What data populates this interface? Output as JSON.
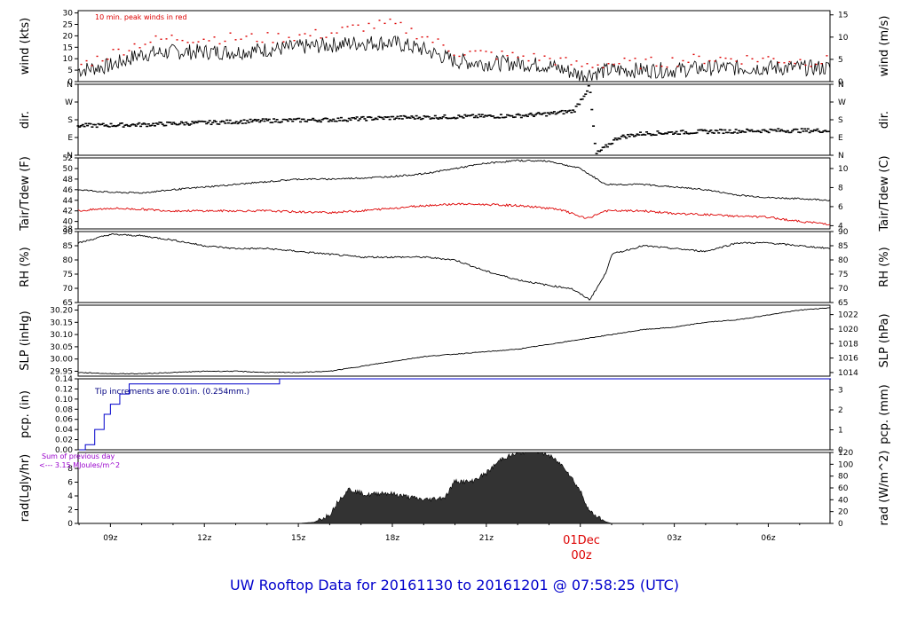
{
  "title": "UW Rooftop Data for 20161130  to  20161201 @ 07:58:25  (UTC)",
  "x_axis": {
    "ticks": [
      "09z",
      "12z",
      "15z",
      "18z",
      "21z",
      "00z",
      "03z",
      "06z"
    ],
    "date_marker": "01Dec",
    "date_marker_hour": "00z",
    "date_marker_color": "#dd0000"
  },
  "panels": [
    {
      "id": "wind",
      "left_label": "wind (kts)",
      "right_label": "wind (m/s)",
      "left_ticks": [
        "0",
        "5",
        "10",
        "15",
        "20",
        "25",
        "30"
      ],
      "right_ticks": [
        "0",
        "5",
        "10",
        "15"
      ],
      "annotation": "10 min. peak winds in red"
    },
    {
      "id": "dir",
      "left_label": "dir.",
      "right_label": "dir.",
      "left_ticks": [
        "N",
        "E",
        "S",
        "W",
        "N"
      ],
      "right_ticks": [
        "N",
        "E",
        "S",
        "W",
        "N"
      ]
    },
    {
      "id": "temp",
      "left_label": "Tair/Tdew (F)",
      "right_label": "Tair/Tdew (C)",
      "left_ticks": [
        "38",
        "40",
        "42",
        "44",
        "46",
        "48",
        "50",
        "52"
      ],
      "right_ticks": [
        "4",
        "6",
        "8",
        "10"
      ]
    },
    {
      "id": "rh",
      "left_label": "RH (%)",
      "right_label": "RH (%)",
      "left_ticks": [
        "65",
        "70",
        "75",
        "80",
        "85",
        "90"
      ],
      "right_ticks": [
        "65",
        "70",
        "75",
        "80",
        "85",
        "90"
      ]
    },
    {
      "id": "slp",
      "left_label": "SLP (inHg)",
      "right_label": "SLP (hPa)",
      "left_ticks": [
        "29.95",
        "30.00",
        "30.05",
        "30.10",
        "30.15",
        "30.20"
      ],
      "right_ticks": [
        "1014",
        "1016",
        "1018",
        "1020",
        "1022"
      ]
    },
    {
      "id": "pcp",
      "left_label": "pcp. (in)",
      "right_label": "pcp. (mm)",
      "left_ticks": [
        "0.00",
        "0.02",
        "0.04",
        "0.06",
        "0.08",
        "0.10",
        "0.12",
        "0.14"
      ],
      "right_ticks": [
        "0",
        "1",
        "2",
        "3"
      ],
      "annotation": "Tip increments are 0.01in. (0.254mm.)"
    },
    {
      "id": "rad",
      "left_label": "rad(Lgly/hr)",
      "right_label": "rad (W/m^2)",
      "left_ticks": [
        "0",
        "2",
        "4",
        "6",
        "8"
      ],
      "right_ticks": [
        "0",
        "20",
        "40",
        "60",
        "80",
        "100",
        "120"
      ],
      "annotation_line1": "Sum of previous day",
      "annotation_line2": "<--- 3.15 MJoules/m^2"
    }
  ],
  "colors": {
    "title": "#0000cc",
    "peak": "#dd0000",
    "dew": "#dd0000",
    "pcp": "#0000cc",
    "rad_note": "#9900cc"
  },
  "chart_data": {
    "type": "line",
    "x_unit": "UTC hour (2016-11-30 07:58 to 2016-12-01 07:58)",
    "x_range": [
      7.97,
      31.97
    ],
    "wind": {
      "ylim_kts": [
        0,
        31
      ],
      "avg_kts": [
        [
          8,
          5
        ],
        [
          9,
          7
        ],
        [
          10,
          12
        ],
        [
          11,
          13
        ],
        [
          12,
          13
        ],
        [
          13,
          13
        ],
        [
          14,
          14
        ],
        [
          15,
          15
        ],
        [
          16,
          16
        ],
        [
          17,
          17
        ],
        [
          18,
          17
        ],
        [
          19,
          14
        ],
        [
          20,
          9
        ],
        [
          21,
          8
        ],
        [
          22,
          8
        ],
        [
          23,
          7
        ],
        [
          24,
          3
        ],
        [
          25,
          5
        ],
        [
          26,
          5
        ],
        [
          27,
          5
        ],
        [
          28,
          6
        ],
        [
          29,
          6
        ],
        [
          30,
          6
        ],
        [
          31,
          6
        ],
        [
          32,
          6
        ]
      ],
      "peak_kts": [
        [
          8,
          7
        ],
        [
          9,
          12
        ],
        [
          10,
          17
        ],
        [
          11,
          19
        ],
        [
          12,
          19
        ],
        [
          13,
          19
        ],
        [
          14,
          19
        ],
        [
          15,
          20
        ],
        [
          16,
          21
        ],
        [
          17,
          24
        ],
        [
          18,
          25
        ],
        [
          19,
          20
        ],
        [
          20,
          13
        ],
        [
          21,
          12
        ],
        [
          22,
          11
        ],
        [
          23,
          10
        ],
        [
          24,
          7
        ],
        [
          25,
          8
        ],
        [
          26,
          8
        ],
        [
          27,
          9
        ],
        [
          28,
          10
        ],
        [
          29,
          10
        ],
        [
          30,
          10
        ],
        [
          31,
          9
        ],
        [
          32,
          9
        ]
      ]
    },
    "dir": {
      "categories": [
        "N",
        "E",
        "S",
        "W",
        "N"
      ],
      "degrees": [
        [
          8,
          150
        ],
        [
          10,
          155
        ],
        [
          12,
          165
        ],
        [
          14,
          175
        ],
        [
          16,
          180
        ],
        [
          18,
          190
        ],
        [
          20,
          195
        ],
        [
          22,
          200
        ],
        [
          23,
          210
        ],
        [
          23.8,
          225
        ],
        [
          24.1,
          300
        ],
        [
          24.3,
          350
        ],
        [
          24.5,
          5
        ],
        [
          24.8,
          40
        ],
        [
          25.2,
          90
        ],
        [
          26,
          110
        ],
        [
          28,
          120
        ],
        [
          30,
          125
        ],
        [
          32,
          125
        ]
      ]
    },
    "temp": {
      "ylim_f": [
        38.6,
        52
      ],
      "tair_f": [
        [
          8,
          46
        ],
        [
          9,
          45.5
        ],
        [
          10,
          45.4
        ],
        [
          11,
          46
        ],
        [
          12,
          46.5
        ],
        [
          13,
          47
        ],
        [
          14,
          47.5
        ],
        [
          15,
          48
        ],
        [
          16,
          48
        ],
        [
          17,
          48.2
        ],
        [
          18,
          48.5
        ],
        [
          19,
          49
        ],
        [
          20,
          50
        ],
        [
          21,
          51
        ],
        [
          22,
          51.5
        ],
        [
          23,
          51.4
        ],
        [
          24,
          50
        ],
        [
          24.8,
          47
        ],
        [
          26,
          47
        ],
        [
          27,
          46.5
        ],
        [
          28,
          46
        ],
        [
          29,
          45
        ],
        [
          30,
          44.5
        ],
        [
          31,
          44.3
        ],
        [
          32,
          44
        ]
      ],
      "tdew_f": [
        [
          8,
          42
        ],
        [
          9,
          42.5
        ],
        [
          10,
          42.3
        ],
        [
          11,
          42
        ],
        [
          12,
          42
        ],
        [
          13,
          42
        ],
        [
          14,
          42
        ],
        [
          15,
          41.8
        ],
        [
          16,
          41.7
        ],
        [
          17,
          42
        ],
        [
          18,
          42.5
        ],
        [
          19,
          43
        ],
        [
          20,
          43.3
        ],
        [
          21,
          43.2
        ],
        [
          22,
          43
        ],
        [
          23,
          42.5
        ],
        [
          23.5,
          42
        ],
        [
          24.2,
          40.5
        ],
        [
          24.8,
          42
        ],
        [
          26,
          42
        ],
        [
          27,
          41.5
        ],
        [
          28,
          41.3
        ],
        [
          29,
          41
        ],
        [
          30,
          40.8
        ],
        [
          31,
          40
        ],
        [
          32,
          39.5
        ]
      ]
    },
    "rh": {
      "ylim": [
        65,
        90
      ],
      "values": [
        [
          8,
          86
        ],
        [
          9,
          89
        ],
        [
          10,
          88.5
        ],
        [
          11,
          87
        ],
        [
          12,
          85
        ],
        [
          13,
          84
        ],
        [
          14,
          84
        ],
        [
          15,
          83
        ],
        [
          16,
          82
        ],
        [
          17,
          81
        ],
        [
          18,
          81
        ],
        [
          19,
          81
        ],
        [
          20,
          80
        ],
        [
          21,
          76
        ],
        [
          22,
          73
        ],
        [
          23,
          71
        ],
        [
          23.7,
          70
        ],
        [
          24.3,
          66
        ],
        [
          24.8,
          75
        ],
        [
          25,
          82
        ],
        [
          26,
          85
        ],
        [
          27,
          84
        ],
        [
          28,
          83
        ],
        [
          29,
          86
        ],
        [
          30,
          86
        ],
        [
          31,
          85
        ],
        [
          32,
          84
        ]
      ]
    },
    "slp": {
      "ylim_inhg": [
        29.93,
        30.22
      ],
      "values": [
        [
          8,
          29.945
        ],
        [
          9,
          29.94
        ],
        [
          10,
          29.94
        ],
        [
          11,
          29.945
        ],
        [
          12,
          29.95
        ],
        [
          13,
          29.95
        ],
        [
          14,
          29.945
        ],
        [
          15,
          29.945
        ],
        [
          16,
          29.95
        ],
        [
          17,
          29.97
        ],
        [
          18,
          29.99
        ],
        [
          19,
          30.01
        ],
        [
          20,
          30.02
        ],
        [
          21,
          30.03
        ],
        [
          22,
          30.04
        ],
        [
          23,
          30.06
        ],
        [
          24,
          30.08
        ],
        [
          25,
          30.1
        ],
        [
          26,
          30.12
        ],
        [
          27,
          30.13
        ],
        [
          28,
          30.15
        ],
        [
          29,
          30.16
        ],
        [
          30,
          30.18
        ],
        [
          31,
          30.2
        ],
        [
          32,
          30.21
        ]
      ]
    },
    "pcp": {
      "ylim_in": [
        0,
        0.14
      ],
      "values": [
        [
          8,
          0
        ],
        [
          8.2,
          0.01
        ],
        [
          8.5,
          0.04
        ],
        [
          8.8,
          0.07
        ],
        [
          9.0,
          0.09
        ],
        [
          9.3,
          0.11
        ],
        [
          9.6,
          0.13
        ],
        [
          9.9,
          0.13
        ],
        [
          14.3,
          0.13
        ],
        [
          14.4,
          0.14
        ],
        [
          32,
          0.14
        ]
      ]
    },
    "rad": {
      "ylim_wm2": [
        0,
        120
      ],
      "values": [
        [
          15,
          0
        ],
        [
          15.5,
          2
        ],
        [
          16,
          15
        ],
        [
          16.3,
          40
        ],
        [
          16.6,
          58
        ],
        [
          17.2,
          48
        ],
        [
          17.7,
          52
        ],
        [
          18,
          50
        ],
        [
          18.5,
          45
        ],
        [
          19,
          40
        ],
        [
          19.4,
          42
        ],
        [
          19.7,
          45
        ],
        [
          20,
          72
        ],
        [
          20.5,
          70
        ],
        [
          21,
          85
        ],
        [
          21.5,
          110
        ],
        [
          22,
          118
        ],
        [
          22.5,
          125
        ],
        [
          23,
          115
        ],
        [
          23.5,
          95
        ],
        [
          24,
          55
        ],
        [
          24.3,
          20
        ],
        [
          24.8,
          3
        ],
        [
          25,
          0
        ]
      ]
    }
  }
}
